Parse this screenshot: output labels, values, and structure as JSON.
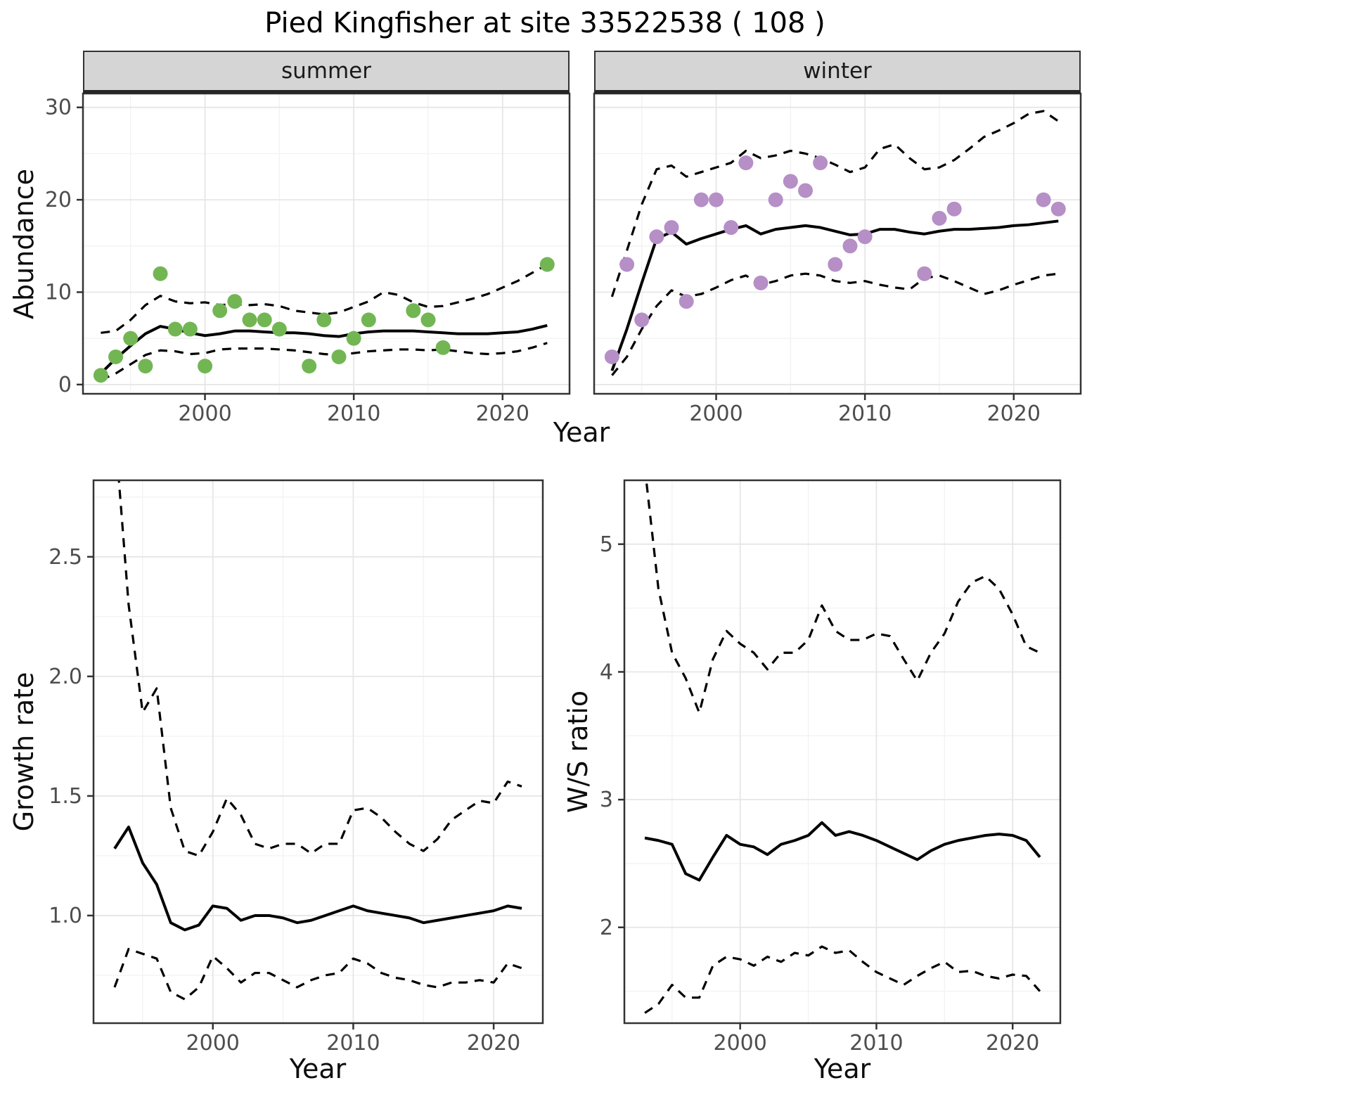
{
  "title": "Pied Kingfisher at site 33522538 ( 108 )",
  "axis_labels": {
    "abundance": "Abundance",
    "year": "Year",
    "growth_rate": "Growth rate",
    "ws_ratio": "W/S ratio"
  },
  "colors": {
    "summer_points": "#72B654",
    "winter_points": "#B58FC6",
    "fit_line": "#000000",
    "ci_line": "#000000",
    "grid_major": "#e6e6e6",
    "grid_minor": "#f3f3f3",
    "panel_border": "#333333",
    "strip_bg": "#d5d5d5",
    "tick_text": "#4d4d4d"
  },
  "chart_data": [
    {
      "id": "abundance-summer",
      "type": "scatter",
      "facet_label": "summer",
      "xlabel": "Year",
      "ylabel": "Abundance",
      "xlim": [
        1991.8,
        2024.5
      ],
      "ylim": [
        -1,
        31.5
      ],
      "xticks": [
        2000,
        2010,
        2020
      ],
      "xtick_labels": [
        "2000",
        "2010",
        "2020"
      ],
      "yticks": [
        0,
        10,
        20,
        30
      ],
      "ytick_labels": [
        "0",
        "10",
        "20",
        "30"
      ],
      "line_years": [
        1993,
        1994,
        1995,
        1996,
        1997,
        1998,
        1999,
        2000,
        2001,
        2002,
        2003,
        2004,
        2005,
        2006,
        2007,
        2008,
        2009,
        2010,
        2011,
        2012,
        2013,
        2014,
        2015,
        2016,
        2017,
        2018,
        2019,
        2020,
        2021,
        2022,
        2023
      ],
      "fit": [
        1.2,
        2.8,
        4.2,
        5.5,
        6.3,
        6.0,
        5.6,
        5.3,
        5.5,
        5.8,
        5.8,
        5.7,
        5.6,
        5.6,
        5.5,
        5.3,
        5.2,
        5.5,
        5.7,
        5.8,
        5.8,
        5.8,
        5.7,
        5.6,
        5.5,
        5.5,
        5.5,
        5.6,
        5.7,
        6.0,
        6.4
      ],
      "upper": [
        5.6,
        5.8,
        7.0,
        8.6,
        9.6,
        9.0,
        8.8,
        8.9,
        8.6,
        8.7,
        8.6,
        8.7,
        8.5,
        8.0,
        7.8,
        7.6,
        7.8,
        8.4,
        9.0,
        10.0,
        9.7,
        8.9,
        8.4,
        8.5,
        8.9,
        9.3,
        9.8,
        10.5,
        11.2,
        12.1,
        13.0
      ],
      "lower": [
        0.5,
        1.2,
        2.2,
        3.2,
        3.7,
        3.6,
        3.3,
        3.4,
        3.8,
        3.9,
        3.9,
        3.9,
        3.8,
        3.7,
        3.5,
        3.3,
        3.2,
        3.4,
        3.6,
        3.7,
        3.8,
        3.8,
        3.7,
        3.8,
        3.6,
        3.4,
        3.3,
        3.4,
        3.6,
        4.0,
        4.5
      ],
      "points": {
        "color": "#72B654",
        "years": [
          1993,
          1994,
          1995,
          1996,
          1997,
          1998,
          1999,
          2000,
          2001,
          2002,
          2003,
          2004,
          2005,
          2007,
          2008,
          2009,
          2010,
          2011,
          2014,
          2015,
          2016,
          2023
        ],
        "values": [
          1,
          3,
          5,
          2,
          12,
          6,
          6,
          2,
          8,
          9,
          7,
          7,
          6,
          2,
          7,
          3,
          5,
          7,
          8,
          7,
          4,
          13
        ]
      }
    },
    {
      "id": "abundance-winter",
      "type": "scatter",
      "facet_label": "winter",
      "xlabel": "Year",
      "ylabel": "Abundance",
      "xlim": [
        1991.8,
        2024.5
      ],
      "ylim": [
        -1,
        31.5
      ],
      "xticks": [
        2000,
        2010,
        2020
      ],
      "xtick_labels": [
        "2000",
        "2010",
        "2020"
      ],
      "yticks": [
        0,
        10,
        20,
        30
      ],
      "ytick_labels": [
        "0",
        "10",
        "20",
        "30"
      ],
      "line_years": [
        1993,
        1994,
        1995,
        1996,
        1997,
        1998,
        1999,
        2000,
        2001,
        2002,
        2003,
        2004,
        2005,
        2006,
        2007,
        2008,
        2009,
        2010,
        2011,
        2012,
        2013,
        2014,
        2015,
        2016,
        2017,
        2018,
        2019,
        2020,
        2021,
        2022,
        2023
      ],
      "fit": [
        1.5,
        6.0,
        11.0,
        15.8,
        16.5,
        15.2,
        15.8,
        16.3,
        16.8,
        17.2,
        16.3,
        16.8,
        17.0,
        17.2,
        17.0,
        16.6,
        16.2,
        16.3,
        16.8,
        16.8,
        16.5,
        16.3,
        16.6,
        16.8,
        16.8,
        16.9,
        17.0,
        17.2,
        17.3,
        17.5,
        17.7
      ],
      "upper": [
        9.5,
        14.5,
        19.5,
        23.3,
        23.7,
        22.5,
        23.0,
        23.5,
        24.0,
        25.3,
        24.5,
        24.8,
        25.3,
        25.0,
        24.5,
        23.8,
        23.0,
        23.5,
        25.5,
        26.0,
        24.5,
        23.3,
        23.5,
        24.3,
        25.5,
        26.8,
        27.5,
        28.3,
        29.3,
        29.6,
        28.5
      ],
      "lower": [
        1.0,
        3.0,
        6.0,
        8.5,
        10.2,
        9.5,
        9.8,
        10.5,
        11.3,
        11.8,
        10.8,
        11.2,
        11.8,
        12.0,
        11.8,
        11.2,
        11.0,
        11.2,
        10.8,
        10.5,
        10.3,
        11.5,
        11.8,
        11.2,
        10.5,
        9.8,
        10.2,
        10.8,
        11.3,
        11.8,
        12.0
      ],
      "points": {
        "color": "#B58FC6",
        "years": [
          1993,
          1994,
          1995,
          1996,
          1997,
          1998,
          1999,
          2000,
          2001,
          2002,
          2003,
          2004,
          2005,
          2006,
          2007,
          2008,
          2009,
          2010,
          2014,
          2015,
          2016,
          2022,
          2023
        ],
        "values": [
          3,
          13,
          7,
          16,
          17,
          9,
          20,
          20,
          17,
          24,
          11,
          20,
          22,
          21,
          24,
          13,
          15,
          16,
          12,
          18,
          19,
          20,
          19
        ]
      }
    },
    {
      "id": "growth-rate",
      "type": "line",
      "facet_label": "",
      "xlabel": "Year",
      "ylabel": "Growth rate",
      "xlim": [
        1991.5,
        2023.5
      ],
      "ylim": [
        0.55,
        2.82
      ],
      "xticks": [
        2000,
        2010,
        2020
      ],
      "xtick_labels": [
        "2000",
        "2010",
        "2020"
      ],
      "yticks": [
        1.0,
        1.5,
        2.0,
        2.5
      ],
      "ytick_labels": [
        "1.0",
        "1.5",
        "2.0",
        "2.5"
      ],
      "line_years": [
        1993,
        1994,
        1995,
        1996,
        1997,
        1998,
        1999,
        2000,
        2001,
        2002,
        2003,
        2004,
        2005,
        2006,
        2007,
        2008,
        2009,
        2010,
        2011,
        2012,
        2013,
        2014,
        2015,
        2016,
        2017,
        2018,
        2019,
        2020,
        2021,
        2022
      ],
      "fit": [
        1.28,
        1.37,
        1.22,
        1.13,
        0.97,
        0.94,
        0.96,
        1.04,
        1.03,
        0.98,
        1.0,
        1.0,
        0.99,
        0.97,
        0.98,
        1.0,
        1.02,
        1.04,
        1.02,
        1.01,
        1.0,
        0.99,
        0.97,
        0.98,
        0.99,
        1.0,
        1.01,
        1.02,
        1.04,
        1.03
      ],
      "upper": [
        3.05,
        2.3,
        1.85,
        1.95,
        1.45,
        1.27,
        1.25,
        1.35,
        1.49,
        1.42,
        1.3,
        1.28,
        1.3,
        1.3,
        1.26,
        1.3,
        1.3,
        1.44,
        1.45,
        1.41,
        1.35,
        1.3,
        1.27,
        1.32,
        1.4,
        1.44,
        1.48,
        1.47,
        1.56,
        1.54
      ],
      "lower": [
        0.7,
        0.86,
        0.84,
        0.82,
        0.68,
        0.65,
        0.7,
        0.83,
        0.78,
        0.72,
        0.76,
        0.76,
        0.73,
        0.7,
        0.73,
        0.75,
        0.76,
        0.82,
        0.8,
        0.76,
        0.74,
        0.73,
        0.71,
        0.7,
        0.72,
        0.72,
        0.73,
        0.72,
        0.8,
        0.78
      ]
    },
    {
      "id": "ws-ratio",
      "type": "line",
      "facet_label": "",
      "xlabel": "Year",
      "ylabel": "W/S ratio",
      "xlim": [
        1991.5,
        2023.5
      ],
      "ylim": [
        1.25,
        5.5
      ],
      "xticks": [
        2000,
        2010,
        2020
      ],
      "xtick_labels": [
        "2000",
        "2010",
        "2020"
      ],
      "yticks": [
        2,
        3,
        4,
        5
      ],
      "ytick_labels": [
        "2",
        "3",
        "4",
        "5"
      ],
      "line_years": [
        1993,
        1994,
        1995,
        1996,
        1997,
        1998,
        1999,
        2000,
        2001,
        2002,
        2003,
        2004,
        2005,
        2006,
        2007,
        2008,
        2009,
        2010,
        2011,
        2012,
        2013,
        2014,
        2015,
        2016,
        2017,
        2018,
        2019,
        2020,
        2021,
        2022
      ],
      "fit": [
        2.7,
        2.68,
        2.65,
        2.42,
        2.37,
        2.55,
        2.72,
        2.65,
        2.63,
        2.57,
        2.65,
        2.68,
        2.72,
        2.82,
        2.72,
        2.75,
        2.72,
        2.68,
        2.63,
        2.58,
        2.53,
        2.6,
        2.65,
        2.68,
        2.7,
        2.72,
        2.73,
        2.72,
        2.68,
        2.55
      ],
      "upper": [
        5.6,
        4.65,
        4.15,
        3.95,
        3.68,
        4.1,
        4.32,
        4.22,
        4.15,
        4.02,
        4.15,
        4.15,
        4.25,
        4.52,
        4.32,
        4.25,
        4.25,
        4.3,
        4.28,
        4.1,
        3.93,
        4.15,
        4.3,
        4.55,
        4.7,
        4.75,
        4.65,
        4.45,
        4.2,
        4.15
      ],
      "lower": [
        1.33,
        1.4,
        1.55,
        1.45,
        1.45,
        1.7,
        1.77,
        1.75,
        1.7,
        1.77,
        1.73,
        1.8,
        1.78,
        1.85,
        1.8,
        1.82,
        1.73,
        1.65,
        1.6,
        1.55,
        1.62,
        1.68,
        1.73,
        1.65,
        1.66,
        1.62,
        1.6,
        1.63,
        1.62,
        1.5
      ]
    }
  ]
}
